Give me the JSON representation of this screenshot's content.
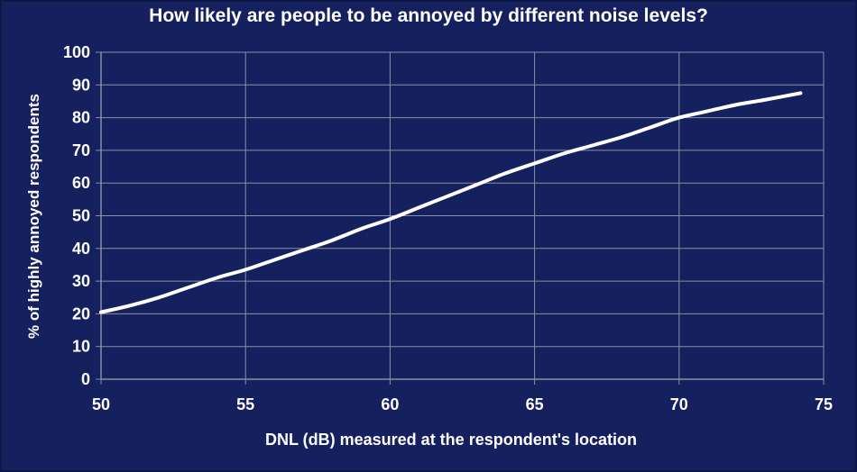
{
  "chart_data": {
    "type": "line",
    "title": "How likely are people to be annoyed by different noise levels?",
    "xlabel": "DNL (dB) measured at the respondent's location",
    "ylabel": "% of highly annoyed respondents",
    "xlim": [
      50,
      75
    ],
    "ylim": [
      0,
      100
    ],
    "xticks": [
      50,
      55,
      60,
      65,
      70,
      75
    ],
    "yticks": [
      0,
      10,
      20,
      30,
      40,
      50,
      60,
      70,
      80,
      90,
      100
    ],
    "grid": true,
    "series": [
      {
        "x": [
          50,
          51,
          52,
          53,
          54,
          55,
          56,
          57,
          58,
          59,
          60,
          61,
          62,
          63,
          64,
          65,
          66,
          67,
          68,
          69,
          70,
          71,
          72,
          73,
          74.2
        ],
        "y": [
          20.5,
          22.5,
          25,
          28,
          31,
          33.5,
          36.5,
          39.5,
          42.5,
          46,
          49,
          52.5,
          56,
          59.5,
          63,
          66,
          69,
          71.5,
          74,
          77,
          80,
          82,
          84,
          85.5,
          87.5
        ]
      }
    ],
    "colors": {
      "background": "#14215e",
      "line": "#ffffff",
      "grid": "#8a8fa6"
    }
  }
}
